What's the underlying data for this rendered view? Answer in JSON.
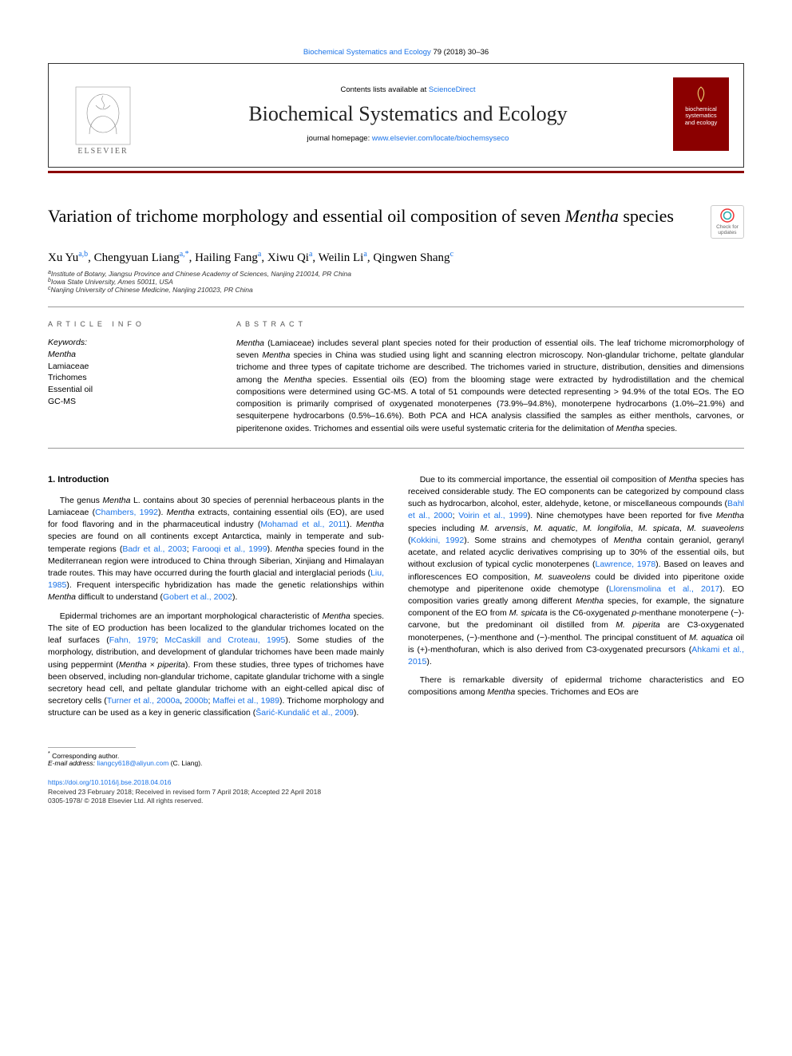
{
  "top_crumb": {
    "journal": "Biochemical Systematics and Ecology",
    "vol_pages": "79 (2018) 30–36"
  },
  "masthead": {
    "contents_available": "Contents lists available at ",
    "sciencedirect": "ScienceDirect",
    "journal_name": "Biochemical Systematics and Ecology",
    "homepage_label": "journal homepage: ",
    "homepage_url": "www.elsevier.com/locate/biochemsyseco",
    "elsevier_word": "ELSEVIER",
    "cover_line1": "biochemical",
    "cover_line2": "systematics",
    "cover_line3": "and ecology"
  },
  "title_pre": "Variation of trichome morphology and essential oil composition of seven ",
  "title_italic": "Mentha",
  "title_post": " species",
  "crossmark": {
    "line1": "Check for",
    "line2": "updates"
  },
  "authors": [
    {
      "name": "Xu Yu",
      "aff": "a,b"
    },
    {
      "name": "Chengyuan Liang",
      "aff": "a,",
      "corr": "*"
    },
    {
      "name": "Hailing Fang",
      "aff": "a"
    },
    {
      "name": "Xiwu Qi",
      "aff": "a"
    },
    {
      "name": "Weilin Li",
      "aff": "a"
    },
    {
      "name": "Qingwen Shang",
      "aff": "c"
    }
  ],
  "affiliations": [
    {
      "letter": "a",
      "text": "Institute of Botany, Jiangsu Province and Chinese Academy of Sciences, Nanjing 210014, PR China"
    },
    {
      "letter": "b",
      "text": "Iowa State University, Ames 50011, USA"
    },
    {
      "letter": "c",
      "text": "Nanjing University of Chinese Medicine, Nanjing 210023, PR China"
    }
  ],
  "info_label": "ARTICLE INFO",
  "abstract_label": "ABSTRACT",
  "keywords_head": "Keywords:",
  "keywords": [
    "Mentha",
    "Lamiaceae",
    "Trichomes",
    "Essential oil",
    "GC-MS"
  ],
  "abstract_segments": [
    {
      "t": "Mentha",
      "italic": true
    },
    {
      "t": " (Lamiaceae) includes several plant species noted for their production of essential oils. The leaf trichome micromorphology of seven "
    },
    {
      "t": "Mentha",
      "italic": true
    },
    {
      "t": " species in China was studied using light and scanning electron microscopy. Non-glandular trichome, peltate glandular trichome and three types of capitate trichome are described. The trichomes varied in structure, distribution, densities and dimensions among the "
    },
    {
      "t": "Mentha",
      "italic": true
    },
    {
      "t": " species. Essential oils (EO) from the blooming stage were extracted by hydrodistillation and the chemical compositions were determined using GC-MS. A total of 51 compounds were detected representing > 94.9% of the total EOs. The EO composition is primarily comprised of oxygenated monoterpenes (73.9%–94.8%), monoterpene hydrocarbons (1.0%–21.9%) and sesquiterpene hydrocarbons (0.5%–16.6%). Both PCA and HCA analysis classified the samples as either menthols, carvones, or piperitenone oxides. Trichomes and essential oils were useful systematic criteria for the delimitation of "
    },
    {
      "t": "Mentha",
      "italic": true
    },
    {
      "t": " species."
    }
  ],
  "intro_heading": "1. Introduction",
  "paragraphs": [
    [
      {
        "t": "The genus "
      },
      {
        "t": "Mentha",
        "italic": true
      },
      {
        "t": " L. contains about 30 species of perennial herbaceous plants in the Lamiaceae ("
      },
      {
        "t": "Chambers, 1992",
        "ref": true
      },
      {
        "t": "). "
      },
      {
        "t": "Mentha",
        "italic": true
      },
      {
        "t": " extracts, containing essential oils (EO), are used for food flavoring and in the pharmaceutical industry ("
      },
      {
        "t": "Mohamad et al., 2011",
        "ref": true
      },
      {
        "t": "). "
      },
      {
        "t": "Mentha",
        "italic": true
      },
      {
        "t": " species are found on all continents except Antarctica, mainly in temperate and sub-temperate regions ("
      },
      {
        "t": "Badr et al., 2003",
        "ref": true
      },
      {
        "t": "; "
      },
      {
        "t": "Farooqi et al., 1999",
        "ref": true
      },
      {
        "t": "). "
      },
      {
        "t": "Mentha",
        "italic": true
      },
      {
        "t": " species found in the Mediterranean region were introduced to China through Siberian, Xinjiang and Himalayan trade routes. This may have occurred during the fourth glacial and interglacial periods ("
      },
      {
        "t": "Liu, 1985",
        "ref": true
      },
      {
        "t": "). Frequent interspecific hybridization has made the genetic relationships within "
      },
      {
        "t": "Mentha",
        "italic": true
      },
      {
        "t": " difficult to understand ("
      },
      {
        "t": "Gobert et al., 2002",
        "ref": true
      },
      {
        "t": ")."
      }
    ],
    [
      {
        "t": "Epidermal trichomes are an important morphological characteristic of "
      },
      {
        "t": "Mentha",
        "italic": true
      },
      {
        "t": " species. The site of EO production has been localized to the glandular trichomes located on the leaf surfaces ("
      },
      {
        "t": "Fahn, 1979",
        "ref": true
      },
      {
        "t": "; "
      },
      {
        "t": "McCaskill and Croteau, 1995",
        "ref": true
      },
      {
        "t": "). Some studies of the morphology, distribution, and development of glandular trichomes have been made mainly using peppermint ("
      },
      {
        "t": "Mentha × piperita",
        "italic": true
      },
      {
        "t": "). From these studies, three types of trichomes have been observed, including non-glandular trichome, capitate glandular trichome with a single secretory head cell, and peltate glandular trichome with an eight-celled apical disc of secretory cells ("
      },
      {
        "t": "Turner et al., 2000a",
        "ref": true
      },
      {
        "t": ", "
      },
      {
        "t": "2000b",
        "ref": true
      },
      {
        "t": "; "
      },
      {
        "t": "Maffei et al., 1989",
        "ref": true
      },
      {
        "t": "). Trichome morphology and structure can be used as a key in generic classification ("
      },
      {
        "t": "Šarić-Kundalić et al., 2009",
        "ref": true
      },
      {
        "t": ")."
      }
    ],
    [
      {
        "t": "Due to its commercial importance, the essential oil composition of "
      },
      {
        "t": "Mentha",
        "italic": true
      },
      {
        "t": " species has received considerable study. The EO components can be categorized by compound class such as hydrocarbon, alcohol, ester, aldehyde, ketone, or miscellaneous compounds ("
      },
      {
        "t": "Bahl et al., 2000",
        "ref": true
      },
      {
        "t": "; "
      },
      {
        "t": "Voirin et al., 1999",
        "ref": true
      },
      {
        "t": "). Nine chemotypes have been reported for five "
      },
      {
        "t": "Mentha",
        "italic": true
      },
      {
        "t": " species including "
      },
      {
        "t": "M. arvensis",
        "italic": true
      },
      {
        "t": ", "
      },
      {
        "t": "M. aquatic",
        "italic": true
      },
      {
        "t": ", "
      },
      {
        "t": "M. longifolia",
        "italic": true
      },
      {
        "t": ", "
      },
      {
        "t": "M. spicata",
        "italic": true
      },
      {
        "t": ", "
      },
      {
        "t": "M. suaveolens",
        "italic": true
      },
      {
        "t": " ("
      },
      {
        "t": "Kokkini, 1992",
        "ref": true
      },
      {
        "t": "). Some strains and chemotypes of "
      },
      {
        "t": "Mentha",
        "italic": true
      },
      {
        "t": " contain geraniol, geranyl acetate, and related acyclic derivatives comprising up to 30% of the essential oils, but without exclusion of typical cyclic monoterpenes ("
      },
      {
        "t": "Lawrence, 1978",
        "ref": true
      },
      {
        "t": "). Based on leaves and inflorescences EO composition, "
      },
      {
        "t": "M. suaveolens",
        "italic": true
      },
      {
        "t": " could be divided into piperitone oxide chemotype and piperitenone oxide chemotype ("
      },
      {
        "t": "Llorensmolina et al., 2017",
        "ref": true
      },
      {
        "t": "). EO composition varies greatly among different "
      },
      {
        "t": "Mentha",
        "italic": true
      },
      {
        "t": " species, for example, the signature component of the EO from "
      },
      {
        "t": "M. spicata",
        "italic": true
      },
      {
        "t": " is the C6-oxygenated "
      },
      {
        "t": "p",
        "italic": true
      },
      {
        "t": "-menthane monoterpene (−)-carvone, but the predominant oil distilled from "
      },
      {
        "t": "M. piperita",
        "italic": true
      },
      {
        "t": " are C3-oxygenated monoterpenes, (−)-menthone and (−)-menthol. The principal constituent of "
      },
      {
        "t": "M. aquatica",
        "italic": true
      },
      {
        "t": " oil is (+)-menthofuran, which is also derived from C3-oxygenated precursors ("
      },
      {
        "t": "Ahkami et al., 2015",
        "ref": true
      },
      {
        "t": ")."
      }
    ],
    [
      {
        "t": "There is remarkable diversity of epidermal trichome characteristics and EO compositions among "
      },
      {
        "t": "Mentha",
        "italic": true
      },
      {
        "t": " species. Trichomes and EOs are"
      }
    ]
  ],
  "corresponding": {
    "star": "*",
    "label": "Corresponding author.",
    "email_label": "E-mail address: ",
    "email": "liangcy618@aliyun.com",
    "who": " (C. Liang)."
  },
  "doi": "https://doi.org/10.1016/j.bse.2018.04.016",
  "history": "Received 23 February 2018; Received in revised form 7 April 2018; Accepted 22 April 2018",
  "copyright": "0305-1978/ © 2018 Elsevier Ltd. All rights reserved.",
  "colors": {
    "accent": "#8b0000",
    "link": "#1a73e8"
  }
}
